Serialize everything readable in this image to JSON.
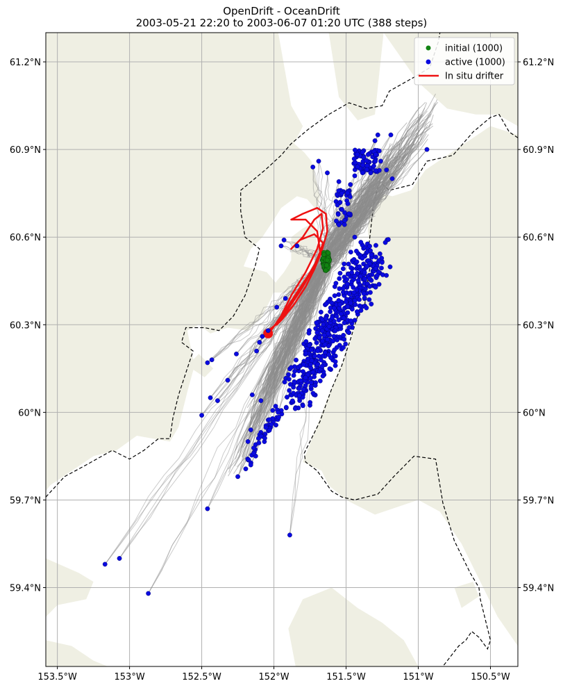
{
  "map": {
    "title_line1": "OpenDrift - OceanDrift",
    "title_line2": "2003-05-21 22:20 to 2003-06-07 01:20 UTC (388 steps)",
    "lon_range": [
      -153.58,
      -150.31
    ],
    "lat_range": [
      59.13,
      61.3
    ],
    "lon_ticks": [
      -153.5,
      -153,
      -152.5,
      -152,
      -151.5,
      -151,
      -150.5
    ],
    "lon_tick_labels": [
      "153.5°W",
      "153°W",
      "152.5°W",
      "152°W",
      "151.5°W",
      "151°W",
      "150.5°W"
    ],
    "lat_ticks": [
      59.4,
      59.7,
      60.0,
      60.3,
      60.6,
      60.9,
      61.2
    ],
    "lat_tick_labels": [
      "59.4°N",
      "59.7°N",
      "60°N",
      "60.3°N",
      "60.6°N",
      "60.9°N",
      "61.2°N"
    ],
    "grid": true,
    "colors": {
      "land": "#efefe3",
      "sea": "#ffffff",
      "trajectory": "#8c8c8c",
      "initial": "#128312",
      "active": "#0a0ae0",
      "drifter": "#ee1111",
      "border": "#000000"
    }
  },
  "legend": {
    "placement": "top-right",
    "entries": [
      {
        "label": "initial (1000)",
        "kind": "marker",
        "color": "#128312"
      },
      {
        "label": "active (1000)",
        "kind": "marker",
        "color": "#0a0ae0"
      },
      {
        "label": "In situ drifter",
        "kind": "line",
        "color": "#ee1111"
      }
    ]
  },
  "initial_release": {
    "count": 1000,
    "center": [
      -151.64,
      60.52
    ],
    "spread": [
      0.025,
      0.035
    ]
  },
  "drifter_track": [
    [
      -152.05,
      60.27
    ],
    [
      -152.02,
      60.28
    ],
    [
      -151.95,
      60.33
    ],
    [
      -151.88,
      60.4
    ],
    [
      -151.78,
      60.48
    ],
    [
      -151.7,
      60.56
    ],
    [
      -151.66,
      60.63
    ],
    [
      -151.67,
      60.68
    ],
    [
      -151.72,
      60.66
    ],
    [
      -151.8,
      60.6
    ],
    [
      -151.88,
      60.56
    ],
    [
      -151.82,
      60.59
    ],
    [
      -151.72,
      60.61
    ],
    [
      -151.66,
      60.58
    ],
    [
      -151.7,
      60.52
    ],
    [
      -151.76,
      60.47
    ],
    [
      -151.84,
      60.41
    ],
    [
      -151.92,
      60.35
    ],
    [
      -151.98,
      60.3
    ],
    [
      -151.94,
      60.32
    ],
    [
      -151.86,
      60.37
    ],
    [
      -151.78,
      60.43
    ],
    [
      -151.72,
      60.49
    ],
    [
      -151.67,
      60.55
    ],
    [
      -151.63,
      60.62
    ],
    [
      -151.64,
      60.68
    ],
    [
      -151.7,
      60.7
    ],
    [
      -151.8,
      60.68
    ],
    [
      -151.88,
      60.66
    ],
    [
      -151.78,
      60.66
    ],
    [
      -151.7,
      60.62
    ],
    [
      -151.68,
      60.55
    ],
    [
      -151.73,
      60.49
    ],
    [
      -151.8,
      60.43
    ],
    [
      -151.88,
      60.37
    ],
    [
      -151.96,
      60.31
    ],
    [
      -152.04,
      60.28
    ],
    [
      -152.07,
      60.27
    ]
  ],
  "active_particles": [
    [
      -151.3,
      60.93
    ],
    [
      -151.26,
      60.86
    ],
    [
      -151.33,
      60.82
    ],
    [
      -151.28,
      60.95
    ],
    [
      -151.19,
      60.95
    ],
    [
      -151.22,
      60.83
    ],
    [
      -151.18,
      60.8
    ],
    [
      -150.94,
      60.9
    ],
    [
      -151.44,
      60.81
    ],
    [
      -151.55,
      60.79
    ],
    [
      -151.63,
      60.82
    ],
    [
      -151.69,
      60.86
    ],
    [
      -151.73,
      60.84
    ],
    [
      -151.56,
      60.71
    ],
    [
      -151.48,
      60.68
    ],
    [
      -151.93,
      60.59
    ],
    [
      -151.95,
      60.57
    ],
    [
      -151.84,
      60.57
    ],
    [
      -151.92,
      60.39
    ],
    [
      -151.98,
      60.36
    ],
    [
      -152.04,
      60.28
    ],
    [
      -152.08,
      60.26
    ],
    [
      -152.1,
      60.24
    ],
    [
      -152.12,
      60.21
    ],
    [
      -152.26,
      60.2
    ],
    [
      -152.43,
      60.18
    ],
    [
      -152.46,
      60.17
    ],
    [
      -152.32,
      60.11
    ],
    [
      -152.44,
      60.05
    ],
    [
      -152.39,
      60.04
    ],
    [
      -152.5,
      59.99
    ],
    [
      -152.46,
      59.67
    ],
    [
      -151.89,
      59.58
    ],
    [
      -152.15,
      60.06
    ],
    [
      -152.09,
      60.04
    ],
    [
      -151.97,
      60.0
    ],
    [
      -152.16,
      59.94
    ],
    [
      -152.18,
      59.9
    ],
    [
      -152.14,
      59.86
    ],
    [
      -152.16,
      59.82
    ],
    [
      -152.25,
      59.78
    ],
    [
      -153.17,
      59.48
    ],
    [
      -153.07,
      59.5
    ],
    [
      -152.87,
      59.38
    ],
    [
      -151.44,
      60.6
    ],
    [
      -151.47,
      60.78
    ],
    [
      -151.53,
      60.75
    ]
  ],
  "land_polygons": [
    [
      [
        -153.58,
        61.3
      ],
      [
        -151.97,
        61.3
      ],
      [
        -151.88,
        61.05
      ],
      [
        -151.8,
        60.98
      ],
      [
        -151.86,
        60.92
      ],
      [
        -151.79,
        60.89
      ],
      [
        -151.74,
        60.86
      ],
      [
        -151.71,
        60.8
      ],
      [
        -151.68,
        60.74
      ],
      [
        -151.7,
        60.69
      ],
      [
        -151.77,
        60.73
      ],
      [
        -151.84,
        60.74
      ],
      [
        -151.95,
        60.7
      ],
      [
        -152.0,
        60.66
      ],
      [
        -152.08,
        60.6
      ],
      [
        -152.16,
        60.56
      ],
      [
        -152.21,
        60.5
      ],
      [
        -152.05,
        60.48
      ],
      [
        -151.98,
        60.44
      ],
      [
        -152.02,
        60.39
      ],
      [
        -152.08,
        60.33
      ],
      [
        -152.18,
        60.28
      ],
      [
        -152.32,
        60.29
      ],
      [
        -152.44,
        60.27
      ],
      [
        -152.52,
        60.3
      ],
      [
        -152.6,
        60.28
      ],
      [
        -152.55,
        60.16
      ],
      [
        -152.6,
        60.07
      ],
      [
        -152.66,
        59.95
      ],
      [
        -152.72,
        59.9
      ],
      [
        -152.95,
        59.92
      ],
      [
        -153.09,
        59.87
      ],
      [
        -153.25,
        59.85
      ],
      [
        -153.4,
        59.8
      ],
      [
        -153.55,
        59.75
      ],
      [
        -153.58,
        59.73
      ]
    ],
    [
      [
        -152.02,
        60.41
      ],
      [
        -151.98,
        60.45
      ],
      [
        -151.93,
        60.48
      ],
      [
        -151.88,
        60.52
      ],
      [
        -151.88,
        60.6
      ],
      [
        -151.8,
        60.63
      ],
      [
        -151.72,
        60.65
      ],
      [
        -151.7,
        60.57
      ],
      [
        -151.75,
        60.5
      ],
      [
        -151.82,
        60.45
      ],
      [
        -151.9,
        60.41
      ]
    ],
    [
      [
        -151.24,
        61.3
      ],
      [
        -151.0,
        61.13
      ],
      [
        -150.8,
        61.04
      ],
      [
        -150.6,
        61.02
      ],
      [
        -150.45,
        61.02
      ],
      [
        -150.31,
        60.98
      ],
      [
        -150.31,
        61.3
      ]
    ],
    [
      [
        -151.62,
        61.3
      ],
      [
        -151.55,
        61.08
      ],
      [
        -151.42,
        61.0
      ],
      [
        -151.3,
        61.02
      ],
      [
        -151.24,
        61.3
      ]
    ],
    [
      [
        -150.31,
        60.95
      ],
      [
        -150.5,
        60.98
      ],
      [
        -150.8,
        60.88
      ],
      [
        -150.95,
        60.83
      ],
      [
        -151.05,
        60.76
      ],
      [
        -151.18,
        60.74
      ],
      [
        -151.26,
        60.75
      ],
      [
        -151.33,
        60.72
      ],
      [
        -151.35,
        60.62
      ],
      [
        -151.33,
        60.55
      ],
      [
        -151.36,
        60.46
      ],
      [
        -151.4,
        60.38
      ],
      [
        -151.45,
        60.27
      ],
      [
        -151.53,
        60.16
      ],
      [
        -151.62,
        60.06
      ],
      [
        -151.72,
        59.93
      ],
      [
        -151.8,
        59.83
      ],
      [
        -151.67,
        59.8
      ],
      [
        -151.62,
        59.75
      ],
      [
        -151.5,
        59.7
      ],
      [
        -151.3,
        59.65
      ],
      [
        -151.0,
        59.7
      ],
      [
        -150.85,
        59.66
      ],
      [
        -150.7,
        59.55
      ],
      [
        -150.55,
        59.4
      ],
      [
        -150.45,
        59.3
      ],
      [
        -150.31,
        59.2
      ],
      [
        -150.31,
        60.95
      ]
    ],
    [
      [
        -151.85,
        59.13
      ],
      [
        -151.9,
        59.26
      ],
      [
        -151.8,
        59.36
      ],
      [
        -151.6,
        59.4
      ],
      [
        -151.42,
        59.33
      ],
      [
        -151.25,
        59.28
      ],
      [
        -151.1,
        59.22
      ],
      [
        -151.0,
        59.13
      ]
    ],
    [
      [
        -153.58,
        59.5
      ],
      [
        -153.35,
        59.45
      ],
      [
        -153.25,
        59.42
      ],
      [
        -153.3,
        59.36
      ],
      [
        -153.5,
        59.34
      ],
      [
        -153.58,
        59.3
      ]
    ],
    [
      [
        -153.58,
        59.13
      ],
      [
        -153.58,
        59.22
      ],
      [
        -153.4,
        59.2
      ],
      [
        -153.25,
        59.15
      ],
      [
        -153.15,
        59.13
      ]
    ],
    [
      [
        -152.6,
        60.16
      ],
      [
        -152.48,
        60.12
      ],
      [
        -152.42,
        60.15
      ],
      [
        -152.52,
        60.2
      ]
    ],
    [
      [
        -150.75,
        59.4
      ],
      [
        -150.62,
        59.42
      ],
      [
        -150.58,
        59.37
      ],
      [
        -150.7,
        59.33
      ]
    ]
  ],
  "border_lines": [
    [
      [
        -153.58,
        59.71
      ],
      [
        -153.45,
        59.78
      ],
      [
        -153.3,
        59.82
      ],
      [
        -153.12,
        59.87
      ],
      [
        -153.0,
        59.84
      ],
      [
        -152.9,
        59.87
      ],
      [
        -152.8,
        59.91
      ],
      [
        -152.72,
        59.91
      ],
      [
        -152.7,
        59.98
      ],
      [
        -152.66,
        60.06
      ],
      [
        -152.62,
        60.12
      ],
      [
        -152.56,
        60.21
      ],
      [
        -152.64,
        60.24
      ],
      [
        -152.61,
        60.29
      ],
      [
        -152.48,
        60.29
      ],
      [
        -152.38,
        60.28
      ],
      [
        -152.28,
        60.33
      ],
      [
        -152.2,
        60.4
      ],
      [
        -152.13,
        60.5
      ],
      [
        -152.1,
        60.56
      ],
      [
        -152.2,
        60.6
      ],
      [
        -152.23,
        60.69
      ],
      [
        -152.23,
        60.76
      ],
      [
        -152.06,
        60.83
      ],
      [
        -151.95,
        60.88
      ],
      [
        -151.88,
        60.92
      ],
      [
        -151.76,
        60.97
      ],
      [
        -151.62,
        61.02
      ],
      [
        -151.48,
        61.06
      ],
      [
        -151.36,
        61.04
      ],
      [
        -151.25,
        61.05
      ],
      [
        -151.2,
        61.1
      ],
      [
        -151.02,
        61.15
      ],
      [
        -150.92,
        61.18
      ],
      [
        -150.86,
        61.27
      ],
      [
        -150.85,
        61.3
      ]
    ],
    [
      [
        -150.31,
        60.94
      ],
      [
        -150.37,
        60.96
      ],
      [
        -150.44,
        61.02
      ],
      [
        -150.5,
        61.01
      ],
      [
        -150.62,
        60.96
      ],
      [
        -150.76,
        60.88
      ],
      [
        -150.94,
        60.86
      ],
      [
        -151.04,
        60.78
      ],
      [
        -151.2,
        60.76
      ],
      [
        -151.27,
        60.79
      ],
      [
        -151.31,
        60.71
      ],
      [
        -151.34,
        60.58
      ],
      [
        -151.33,
        60.51
      ],
      [
        -151.36,
        60.42
      ],
      [
        -151.37,
        60.37
      ],
      [
        -151.42,
        60.33
      ],
      [
        -151.47,
        60.25
      ],
      [
        -151.53,
        60.16
      ],
      [
        -151.6,
        60.08
      ],
      [
        -151.68,
        59.97
      ],
      [
        -151.79,
        59.86
      ],
      [
        -151.78,
        59.83
      ],
      [
        -151.7,
        59.8
      ],
      [
        -151.6,
        59.73
      ],
      [
        -151.53,
        59.71
      ],
      [
        -151.44,
        59.7
      ],
      [
        -151.28,
        59.72
      ],
      [
        -151.17,
        59.78
      ],
      [
        -151.03,
        59.85
      ],
      [
        -150.88,
        59.84
      ],
      [
        -150.83,
        59.69
      ],
      [
        -150.75,
        59.56
      ],
      [
        -150.64,
        59.45
      ],
      [
        -150.58,
        59.4
      ],
      [
        -150.57,
        59.36
      ],
      [
        -150.52,
        59.26
      ],
      [
        -150.5,
        59.22
      ],
      [
        -150.52,
        59.19
      ],
      [
        -150.58,
        59.23
      ],
      [
        -150.63,
        59.25
      ],
      [
        -150.67,
        59.22
      ],
      [
        -150.72,
        59.2
      ],
      [
        -150.83,
        59.13
      ]
    ]
  ]
}
